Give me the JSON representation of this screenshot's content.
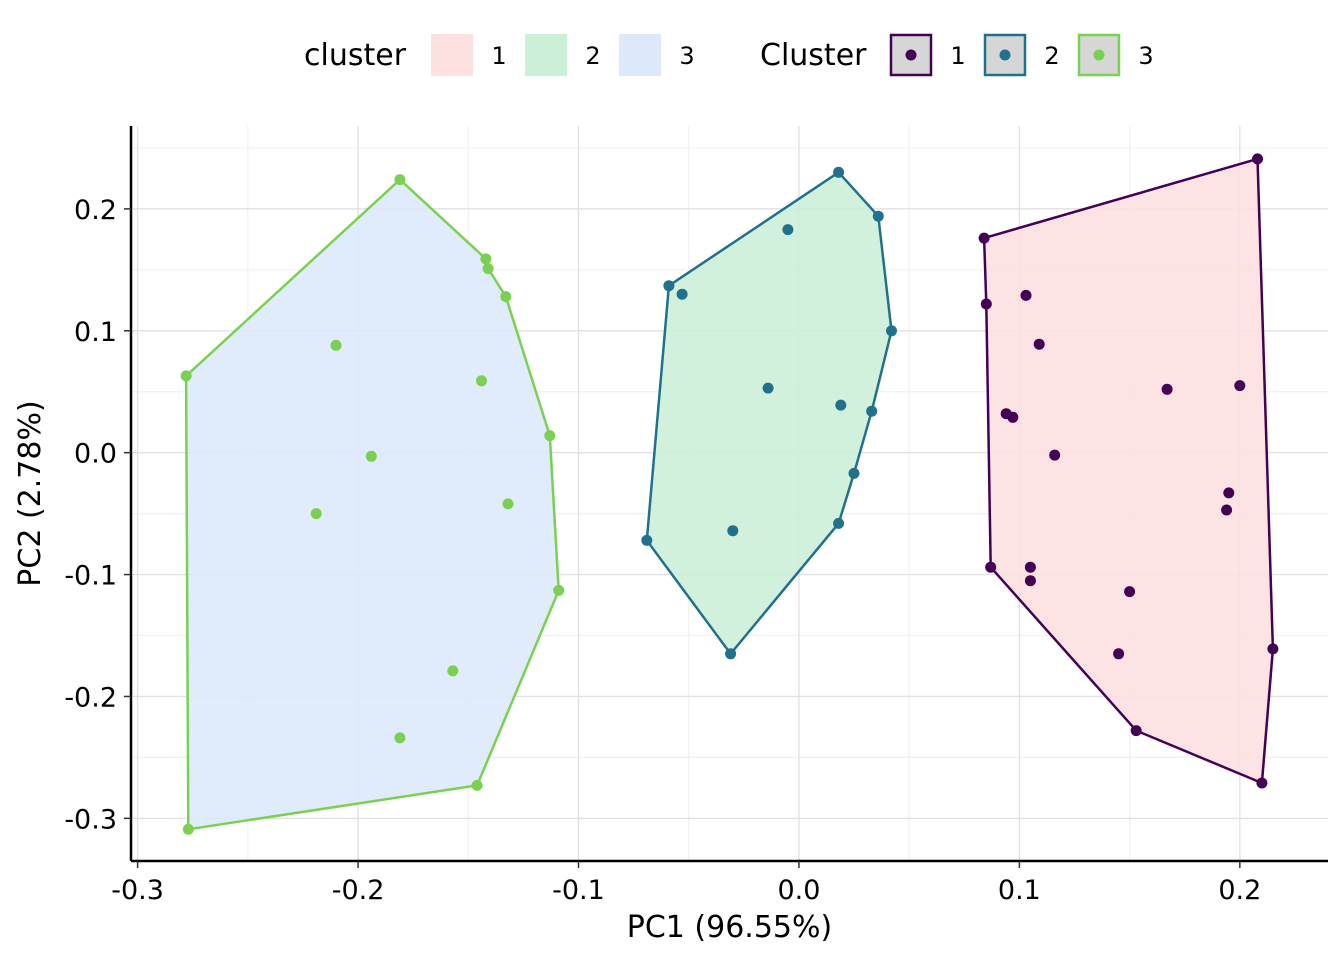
{
  "chart_data": {
    "type": "scatter",
    "xlabel": "PC1 (96.55%)",
    "ylabel": "PC2 (2.78%)",
    "xlim": [
      -0.303,
      0.24
    ],
    "ylim": [
      -0.335,
      0.268
    ],
    "x_ticks": [
      -0.3,
      -0.2,
      -0.1,
      0.0,
      0.1,
      0.2
    ],
    "x_tick_labels": [
      "-0.3",
      "-0.2",
      "-0.1",
      "0.0",
      "0.1",
      "0.2"
    ],
    "y_ticks": [
      -0.3,
      -0.2,
      -0.1,
      0.0,
      0.1,
      0.2
    ],
    "y_tick_labels": [
      "-0.3",
      "-0.2",
      "-0.1",
      "0.0",
      "0.1",
      "0.2"
    ],
    "grid": true,
    "legend_position": "top",
    "legends": [
      {
        "title": "cluster",
        "kind": "fill",
        "entries": [
          {
            "label": "1",
            "color": "#fde0e0"
          },
          {
            "label": "2",
            "color": "#ccefd8"
          },
          {
            "label": "3",
            "color": "#dde9fb"
          }
        ]
      },
      {
        "title": "Cluster",
        "kind": "point",
        "entries": [
          {
            "label": "1",
            "color": "#440154"
          },
          {
            "label": "2",
            "color": "#21718c"
          },
          {
            "label": "3",
            "color": "#7ad151"
          }
        ]
      }
    ],
    "series": [
      {
        "name": "1",
        "color": "#440154",
        "fill": "#fde0e0",
        "points": [
          [
            0.208,
            0.241
          ],
          [
            0.084,
            0.176
          ],
          [
            0.085,
            0.122
          ],
          [
            0.103,
            0.129
          ],
          [
            0.109,
            0.089
          ],
          [
            0.167,
            0.052
          ],
          [
            0.2,
            0.055
          ],
          [
            0.094,
            0.032
          ],
          [
            0.097,
            0.029
          ],
          [
            0.116,
            -0.002
          ],
          [
            0.195,
            -0.033
          ],
          [
            0.194,
            -0.047
          ],
          [
            0.087,
            -0.094
          ],
          [
            0.105,
            -0.094
          ],
          [
            0.105,
            -0.105
          ],
          [
            0.15,
            -0.114
          ],
          [
            0.145,
            -0.165
          ],
          [
            0.153,
            -0.228
          ],
          [
            0.215,
            -0.161
          ],
          [
            0.21,
            -0.271
          ]
        ],
        "hull": [
          [
            0.084,
            0.176
          ],
          [
            0.208,
            0.241
          ],
          [
            0.215,
            -0.161
          ],
          [
            0.21,
            -0.271
          ],
          [
            0.153,
            -0.228
          ],
          [
            0.087,
            -0.094
          ],
          [
            0.085,
            0.122
          ]
        ]
      },
      {
        "name": "2",
        "color": "#21718c",
        "fill": "#ccefd8",
        "points": [
          [
            0.018,
            0.23
          ],
          [
            0.036,
            0.194
          ],
          [
            -0.005,
            0.183
          ],
          [
            -0.059,
            0.137
          ],
          [
            -0.053,
            0.13
          ],
          [
            0.042,
            0.1
          ],
          [
            -0.014,
            0.053
          ],
          [
            0.019,
            0.039
          ],
          [
            0.033,
            0.034
          ],
          [
            0.025,
            -0.017
          ],
          [
            0.018,
            -0.058
          ],
          [
            -0.03,
            -0.064
          ],
          [
            -0.069,
            -0.072
          ],
          [
            -0.031,
            -0.165
          ]
        ],
        "hull": [
          [
            -0.059,
            0.137
          ],
          [
            0.018,
            0.23
          ],
          [
            0.036,
            0.194
          ],
          [
            0.042,
            0.1
          ],
          [
            0.033,
            0.034
          ],
          [
            0.025,
            -0.017
          ],
          [
            0.018,
            -0.058
          ],
          [
            -0.031,
            -0.165
          ],
          [
            -0.069,
            -0.072
          ]
        ]
      },
      {
        "name": "3",
        "color": "#7ad151",
        "fill": "#dde9fb",
        "points": [
          [
            -0.181,
            0.224
          ],
          [
            -0.142,
            0.159
          ],
          [
            -0.141,
            0.151
          ],
          [
            -0.133,
            0.128
          ],
          [
            -0.21,
            0.088
          ],
          [
            -0.144,
            0.059
          ],
          [
            -0.278,
            0.063
          ],
          [
            -0.113,
            0.014
          ],
          [
            -0.194,
            -0.003
          ],
          [
            -0.219,
            -0.05
          ],
          [
            -0.132,
            -0.042
          ],
          [
            -0.109,
            -0.113
          ],
          [
            -0.157,
            -0.179
          ],
          [
            -0.181,
            -0.234
          ],
          [
            -0.146,
            -0.273
          ],
          [
            -0.277,
            -0.309
          ]
        ],
        "hull": [
          [
            -0.278,
            0.063
          ],
          [
            -0.181,
            0.224
          ],
          [
            -0.142,
            0.159
          ],
          [
            -0.141,
            0.151
          ],
          [
            -0.133,
            0.128
          ],
          [
            -0.113,
            0.014
          ],
          [
            -0.109,
            -0.113
          ],
          [
            -0.146,
            -0.273
          ],
          [
            -0.277,
            -0.309
          ]
        ]
      }
    ]
  }
}
